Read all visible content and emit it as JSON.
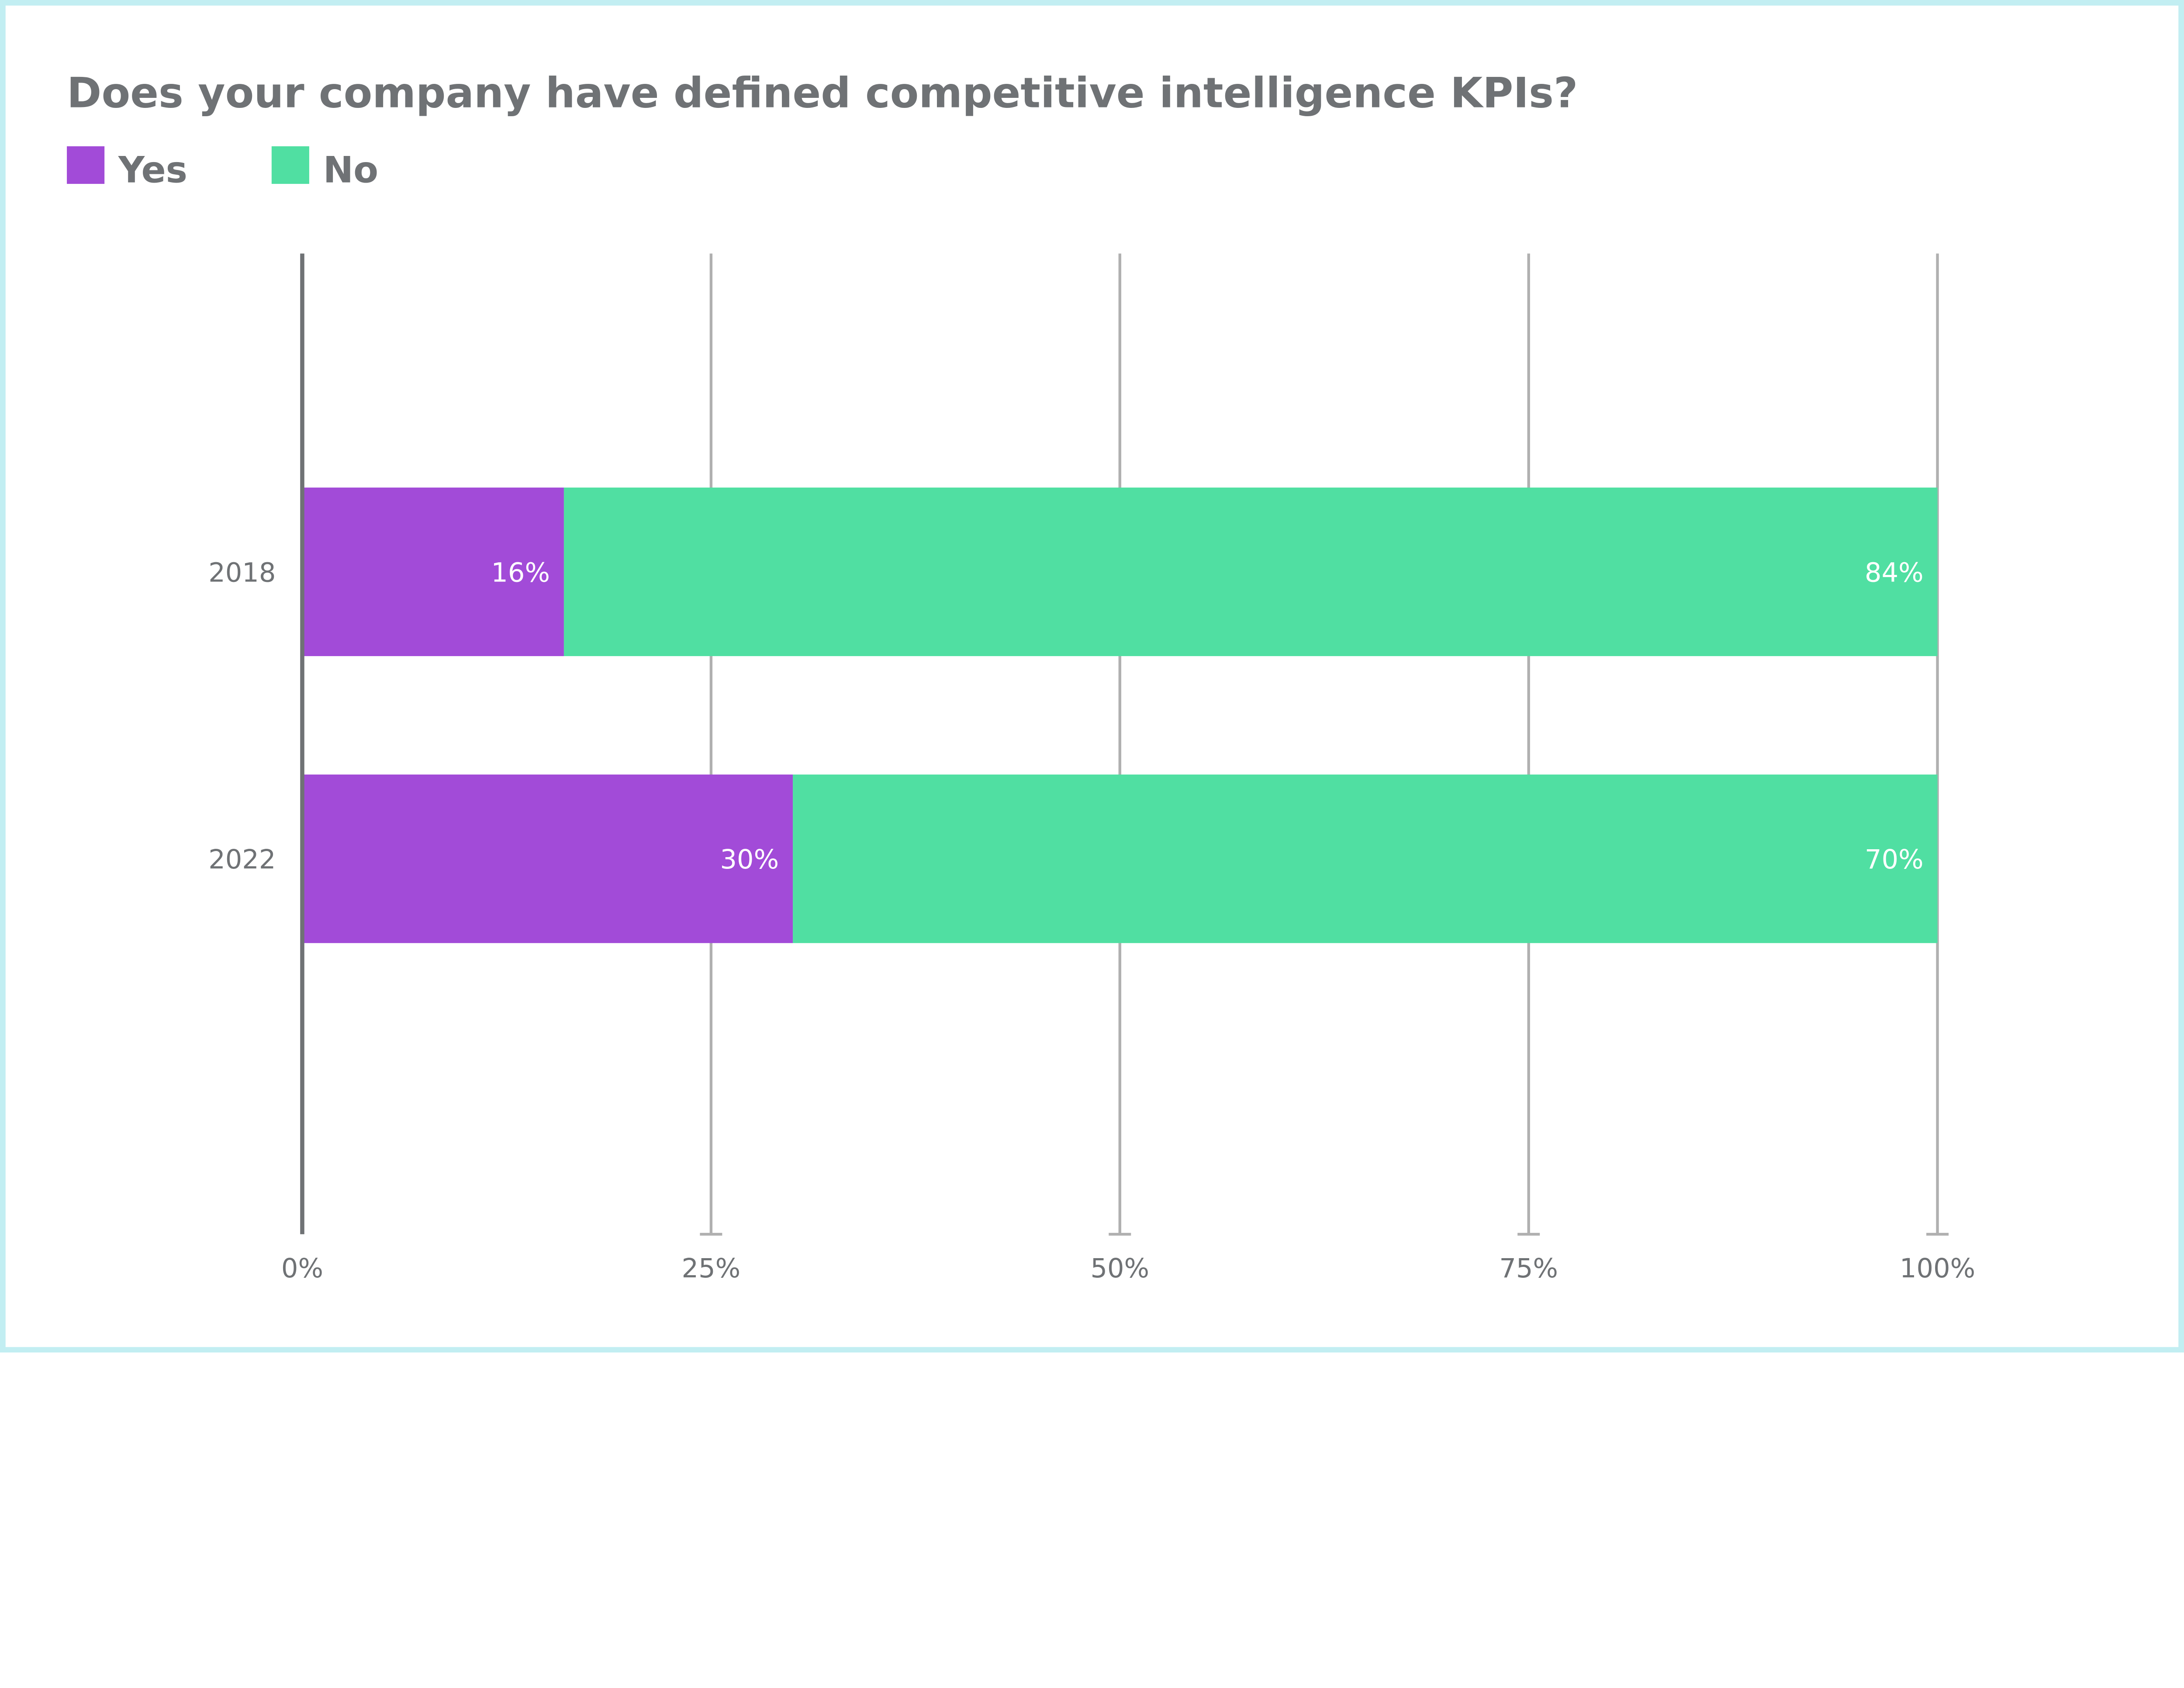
{
  "chart_data": {
    "type": "bar",
    "orientation": "horizontal",
    "stacked": true,
    "title": "Does your company have defined competitive intelligence KPIs?",
    "categories": [
      "2018",
      "2022"
    ],
    "series": [
      {
        "name": "Yes",
        "values": [
          16,
          30
        ],
        "labels": [
          "16%",
          "30%"
        ],
        "color": "#a24bd8"
      },
      {
        "name": "No",
        "values": [
          84,
          70
        ],
        "labels": [
          "84%",
          "70%"
        ],
        "color": "#50dfa2"
      }
    ],
    "xlim": [
      0,
      100
    ],
    "xticks": [
      0,
      25,
      50,
      75,
      100
    ],
    "xtick_labels": [
      "0%",
      "25%",
      "50%",
      "75%",
      "100%"
    ],
    "xlabel": "",
    "ylabel": "",
    "grid": "vertical",
    "legend_placement": "top-left",
    "colors": {
      "border": "#c2eef2",
      "text": "#6f7275",
      "grid": "#b0b0b0",
      "axis": "#6f7275"
    }
  }
}
